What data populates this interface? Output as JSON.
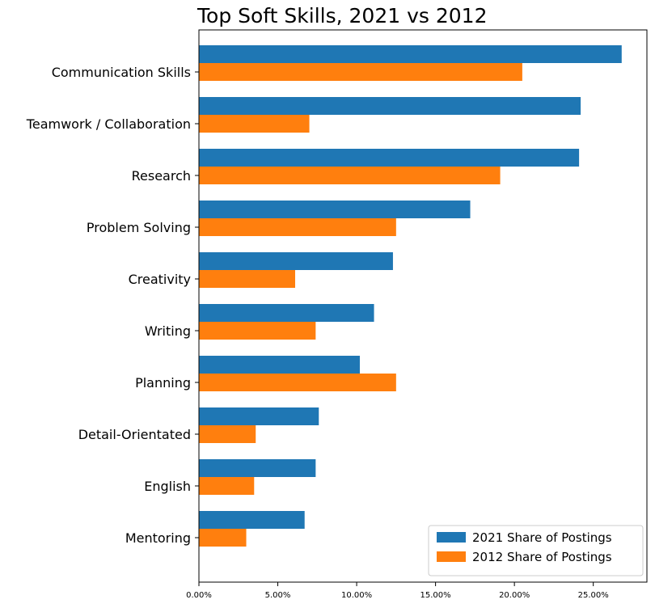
{
  "chart_data": {
    "type": "bar",
    "orientation": "horizontal",
    "title": "Top Soft Skills, 2021 vs 2012",
    "xlabel": "",
    "ylabel": "",
    "categories": [
      "Communication Skills",
      "Teamwork / Collaboration",
      "Research",
      "Problem Solving",
      "Creativity",
      "Writing",
      "Planning",
      "Detail-Orientated",
      "English",
      "Mentoring"
    ],
    "series": [
      {
        "name": "2021 Share of Postings",
        "color": "#1f77b4",
        "values": [
          0.268,
          0.242,
          0.241,
          0.172,
          0.123,
          0.111,
          0.102,
          0.076,
          0.074,
          0.067
        ]
      },
      {
        "name": "2012 Share of Postings",
        "color": "#ff7f0e",
        "values": [
          0.205,
          0.07,
          0.191,
          0.125,
          0.061,
          0.074,
          0.125,
          0.036,
          0.035,
          0.03
        ]
      }
    ],
    "xlim": [
      0,
      0.284
    ],
    "xticks": [
      0,
      0.05,
      0.1,
      0.15,
      0.2,
      0.25
    ],
    "xtick_labels": [
      "0.00%",
      "5.00%",
      "10.00%",
      "15.00%",
      "20.00%",
      "25.00%"
    ],
    "grid": false,
    "legend_position": "bottom-right"
  }
}
